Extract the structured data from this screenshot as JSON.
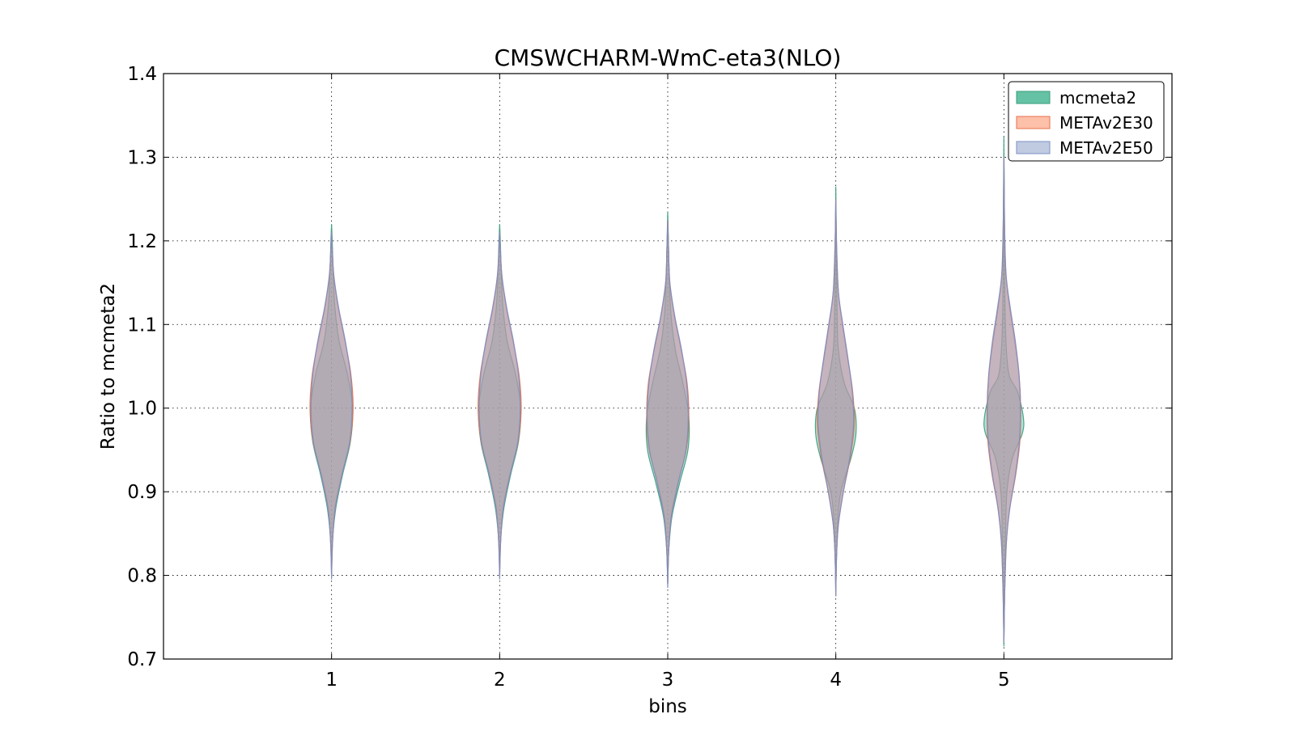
{
  "chart_data": {
    "type": "violin",
    "title": "CMSWCHARM-WmC-eta3(NLO)",
    "xlabel": "bins",
    "ylabel": "Ratio to mcmeta2",
    "xlim": [
      0,
      6
    ],
    "ylim": [
      0.7,
      1.4
    ],
    "x_ticks": [
      "1",
      "2",
      "3",
      "4",
      "5"
    ],
    "y_ticks": [
      "0.7",
      "0.8",
      "0.9",
      "1.0",
      "1.1",
      "1.2",
      "1.3",
      "1.4"
    ],
    "grid": true,
    "legend_position": "top-right",
    "series": [
      {
        "name": "mcmeta2",
        "color": "#66c2a5",
        "edge": "#3a9c7c",
        "violins": [
          {
            "bin": 1,
            "min": 0.8,
            "max": 1.22,
            "profile": [
              [
                0.8,
                0.0
              ],
              [
                0.84,
                0.005
              ],
              [
                0.88,
                0.025
              ],
              [
                0.92,
                0.065
              ],
              [
                0.96,
                0.112
              ],
              [
                1.0,
                0.125
              ],
              [
                1.04,
                0.095
              ],
              [
                1.08,
                0.045
              ],
              [
                1.12,
                0.02
              ],
              [
                1.16,
                0.01
              ],
              [
                1.2,
                0.004
              ],
              [
                1.22,
                0.0
              ]
            ]
          },
          {
            "bin": 2,
            "min": 0.8,
            "max": 1.22,
            "profile": [
              [
                0.8,
                0.0
              ],
              [
                0.84,
                0.005
              ],
              [
                0.88,
                0.025
              ],
              [
                0.92,
                0.065
              ],
              [
                0.96,
                0.112
              ],
              [
                1.0,
                0.125
              ],
              [
                1.04,
                0.095
              ],
              [
                1.08,
                0.045
              ],
              [
                1.12,
                0.02
              ],
              [
                1.16,
                0.01
              ],
              [
                1.2,
                0.004
              ],
              [
                1.22,
                0.0
              ]
            ]
          },
          {
            "bin": 3,
            "min": 0.79,
            "max": 1.235,
            "profile": [
              [
                0.79,
                0.0
              ],
              [
                0.83,
                0.006
              ],
              [
                0.87,
                0.025
              ],
              [
                0.91,
                0.07
              ],
              [
                0.95,
                0.12
              ],
              [
                0.99,
                0.125
              ],
              [
                1.03,
                0.09
              ],
              [
                1.07,
                0.045
              ],
              [
                1.11,
                0.02
              ],
              [
                1.15,
                0.01
              ],
              [
                1.19,
                0.005
              ],
              [
                1.235,
                0.0
              ]
            ]
          },
          {
            "bin": 4,
            "min": 0.78,
            "max": 1.265,
            "profile": [
              [
                0.78,
                0.0
              ],
              [
                0.82,
                0.004
              ],
              [
                0.86,
                0.01
              ],
              [
                0.9,
                0.03
              ],
              [
                0.94,
                0.09
              ],
              [
                0.97,
                0.12
              ],
              [
                1.0,
                0.11
              ],
              [
                1.03,
                0.05
              ],
              [
                1.07,
                0.015
              ],
              [
                1.11,
                0.008
              ],
              [
                1.15,
                0.005
              ],
              [
                1.2,
                0.003
              ],
              [
                1.265,
                0.0
              ]
            ]
          },
          {
            "bin": 5,
            "min": 0.715,
            "max": 1.325,
            "profile": [
              [
                0.715,
                0.0
              ],
              [
                0.75,
                0.002
              ],
              [
                0.8,
                0.005
              ],
              [
                0.85,
                0.01
              ],
              [
                0.9,
                0.018
              ],
              [
                0.94,
                0.05
              ],
              [
                0.97,
                0.11
              ],
              [
                0.99,
                0.115
              ],
              [
                1.02,
                0.08
              ],
              [
                1.04,
                0.03
              ],
              [
                1.08,
                0.012
              ],
              [
                1.13,
                0.006
              ],
              [
                1.2,
                0.003
              ],
              [
                1.26,
                0.002
              ],
              [
                1.325,
                0.0
              ]
            ]
          }
        ]
      },
      {
        "name": "METAv2E30",
        "color": "#fc8d62",
        "edge": "#e8704a",
        "violins": [
          {
            "bin": 1,
            "min": 0.8,
            "max": 1.21,
            "profile": [
              [
                0.8,
                0.0
              ],
              [
                0.84,
                0.006
              ],
              [
                0.88,
                0.02
              ],
              [
                0.92,
                0.06
              ],
              [
                0.96,
                0.11
              ],
              [
                1.0,
                0.128
              ],
              [
                1.04,
                0.115
              ],
              [
                1.08,
                0.08
              ],
              [
                1.12,
                0.04
              ],
              [
                1.16,
                0.012
              ],
              [
                1.21,
                0.0
              ]
            ]
          },
          {
            "bin": 2,
            "min": 0.8,
            "max": 1.21,
            "profile": [
              [
                0.8,
                0.0
              ],
              [
                0.84,
                0.006
              ],
              [
                0.88,
                0.02
              ],
              [
                0.92,
                0.06
              ],
              [
                0.96,
                0.11
              ],
              [
                1.0,
                0.128
              ],
              [
                1.04,
                0.115
              ],
              [
                1.08,
                0.08
              ],
              [
                1.12,
                0.04
              ],
              [
                1.16,
                0.012
              ],
              [
                1.21,
                0.0
              ]
            ]
          },
          {
            "bin": 3,
            "min": 0.79,
            "max": 1.225,
            "profile": [
              [
                0.79,
                0.0
              ],
              [
                0.83,
                0.006
              ],
              [
                0.87,
                0.02
              ],
              [
                0.91,
                0.06
              ],
              [
                0.95,
                0.11
              ],
              [
                0.99,
                0.125
              ],
              [
                1.03,
                0.115
              ],
              [
                1.07,
                0.08
              ],
              [
                1.11,
                0.04
              ],
              [
                1.15,
                0.012
              ],
              [
                1.19,
                0.005
              ],
              [
                1.225,
                0.0
              ]
            ]
          },
          {
            "bin": 4,
            "min": 0.775,
            "max": 1.25,
            "profile": [
              [
                0.775,
                0.0
              ],
              [
                0.82,
                0.004
              ],
              [
                0.86,
                0.015
              ],
              [
                0.9,
                0.045
              ],
              [
                0.94,
                0.085
              ],
              [
                0.98,
                0.11
              ],
              [
                1.02,
                0.1
              ],
              [
                1.06,
                0.07
              ],
              [
                1.1,
                0.04
              ],
              [
                1.14,
                0.015
              ],
              [
                1.2,
                0.004
              ],
              [
                1.25,
                0.0
              ]
            ]
          },
          {
            "bin": 5,
            "min": 0.72,
            "max": 1.3,
            "profile": [
              [
                0.72,
                0.0
              ],
              [
                0.78,
                0.005
              ],
              [
                0.84,
                0.015
              ],
              [
                0.88,
                0.035
              ],
              [
                0.92,
                0.07
              ],
              [
                0.96,
                0.095
              ],
              [
                1.0,
                0.1
              ],
              [
                1.04,
                0.09
              ],
              [
                1.08,
                0.065
              ],
              [
                1.12,
                0.035
              ],
              [
                1.16,
                0.012
              ],
              [
                1.22,
                0.004
              ],
              [
                1.3,
                0.0
              ]
            ]
          }
        ]
      },
      {
        "name": "METAv2E50",
        "color": "#8da0cb",
        "edge": "#7b8fc2",
        "violins": [
          {
            "bin": 1,
            "min": 0.795,
            "max": 1.21,
            "profile": [
              [
                0.795,
                0.0
              ],
              [
                0.84,
                0.006
              ],
              [
                0.88,
                0.022
              ],
              [
                0.92,
                0.062
              ],
              [
                0.96,
                0.108
              ],
              [
                1.0,
                0.122
              ],
              [
                1.04,
                0.112
              ],
              [
                1.08,
                0.082
              ],
              [
                1.12,
                0.042
              ],
              [
                1.16,
                0.013
              ],
              [
                1.21,
                0.0
              ]
            ]
          },
          {
            "bin": 2,
            "min": 0.795,
            "max": 1.21,
            "profile": [
              [
                0.795,
                0.0
              ],
              [
                0.84,
                0.006
              ],
              [
                0.88,
                0.022
              ],
              [
                0.92,
                0.062
              ],
              [
                0.96,
                0.108
              ],
              [
                1.0,
                0.122
              ],
              [
                1.04,
                0.112
              ],
              [
                1.08,
                0.082
              ],
              [
                1.12,
                0.042
              ],
              [
                1.16,
                0.013
              ],
              [
                1.21,
                0.0
              ]
            ]
          },
          {
            "bin": 3,
            "min": 0.785,
            "max": 1.225,
            "profile": [
              [
                0.785,
                0.0
              ],
              [
                0.83,
                0.006
              ],
              [
                0.87,
                0.022
              ],
              [
                0.91,
                0.062
              ],
              [
                0.95,
                0.108
              ],
              [
                0.99,
                0.122
              ],
              [
                1.03,
                0.112
              ],
              [
                1.07,
                0.082
              ],
              [
                1.11,
                0.042
              ],
              [
                1.15,
                0.013
              ],
              [
                1.19,
                0.005
              ],
              [
                1.225,
                0.0
              ]
            ]
          },
          {
            "bin": 4,
            "min": 0.775,
            "max": 1.25,
            "profile": [
              [
                0.775,
                0.0
              ],
              [
                0.82,
                0.004
              ],
              [
                0.86,
                0.015
              ],
              [
                0.9,
                0.045
              ],
              [
                0.94,
                0.082
              ],
              [
                0.98,
                0.105
              ],
              [
                1.02,
                0.098
              ],
              [
                1.06,
                0.072
              ],
              [
                1.1,
                0.042
              ],
              [
                1.14,
                0.015
              ],
              [
                1.2,
                0.004
              ],
              [
                1.25,
                0.0
              ]
            ]
          },
          {
            "bin": 5,
            "min": 0.72,
            "max": 1.3,
            "profile": [
              [
                0.72,
                0.0
              ],
              [
                0.78,
                0.005
              ],
              [
                0.84,
                0.015
              ],
              [
                0.88,
                0.035
              ],
              [
                0.92,
                0.068
              ],
              [
                0.96,
                0.092
              ],
              [
                1.0,
                0.098
              ],
              [
                1.04,
                0.09
              ],
              [
                1.08,
                0.068
              ],
              [
                1.12,
                0.038
              ],
              [
                1.16,
                0.013
              ],
              [
                1.22,
                0.004
              ],
              [
                1.3,
                0.0
              ]
            ]
          }
        ]
      }
    ]
  }
}
